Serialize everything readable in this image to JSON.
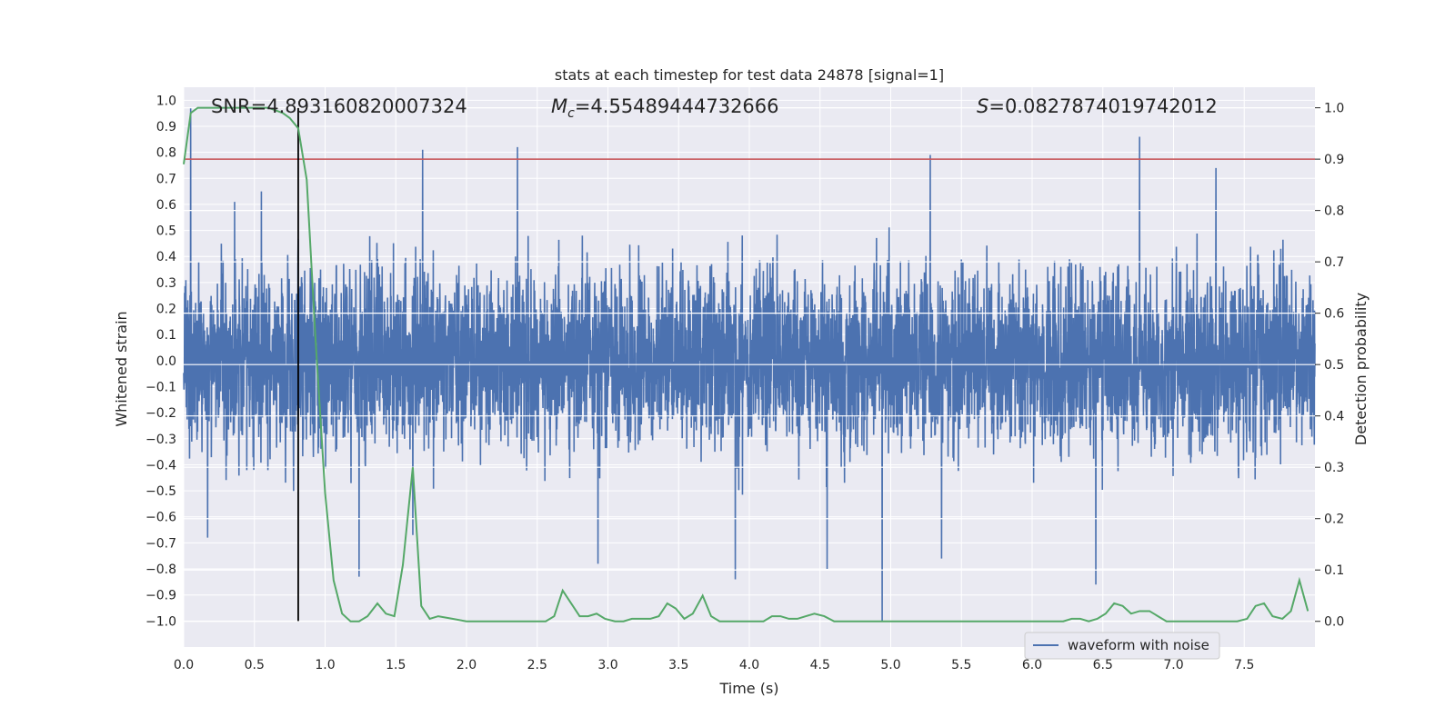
{
  "chart_data": {
    "type": "line",
    "title": "stats at each timestep for test data 24878 [signal=1]",
    "xlabel": "Time (s)",
    "ylabel": "Whitened strain",
    "y2label": "Detection probability",
    "xlim": [
      0.0,
      8.0
    ],
    "ylim": [
      -1.1,
      1.05
    ],
    "y2lim": [
      -0.05,
      1.04
    ],
    "x_ticks": [
      "0.0",
      "0.5",
      "1.0",
      "1.5",
      "2.0",
      "2.5",
      "3.0",
      "3.5",
      "4.0",
      "4.5",
      "5.0",
      "5.5",
      "6.0",
      "6.5",
      "7.0",
      "7.5"
    ],
    "y_ticks": [
      "1.0",
      "0.9",
      "0.8",
      "0.7",
      "0.6",
      "0.5",
      "0.4",
      "0.3",
      "0.2",
      "0.1",
      "0.0",
      "−0.1",
      "−0.2",
      "−0.3",
      "−0.4",
      "−0.5",
      "−0.6",
      "−0.7",
      "−0.8",
      "−0.9",
      "−1.0"
    ],
    "y2_ticks": [
      "1.0",
      "0.9",
      "0.8",
      "0.7",
      "0.6",
      "0.5",
      "0.4",
      "0.3",
      "0.2",
      "0.1",
      "0.0"
    ],
    "grid": true,
    "legend": {
      "entries": [
        "waveform with noise"
      ],
      "placement": "lower-right"
    },
    "annotations": {
      "snr": "SNR=4.893160820007324",
      "mc_symbol": "M",
      "mc_sub": "c",
      "mc_value": "=4.55489444732666",
      "s_symbol": "S",
      "s_value": "=0.0827874019742012"
    },
    "threshold_probability": 0.9,
    "marker_time": 0.81,
    "series": [
      {
        "name": "waveform with noise",
        "axis": "left",
        "color": "#4c72b0",
        "style": "dense noisy strain, typical envelope ±0.35, extreme spikes listed",
        "spikes": [
          {
            "x": 0.05,
            "y": 0.97
          },
          {
            "x": 0.17,
            "y": -0.68
          },
          {
            "x": 0.36,
            "y": 0.61
          },
          {
            "x": 0.55,
            "y": 0.65
          },
          {
            "x": 1.24,
            "y": -0.83
          },
          {
            "x": 1.62,
            "y": -0.67
          },
          {
            "x": 1.69,
            "y": 0.81
          },
          {
            "x": 2.36,
            "y": 0.82
          },
          {
            "x": 2.93,
            "y": -0.78
          },
          {
            "x": 3.9,
            "y": -0.84
          },
          {
            "x": 4.55,
            "y": -0.8
          },
          {
            "x": 4.94,
            "y": -1.0
          },
          {
            "x": 5.28,
            "y": 0.79
          },
          {
            "x": 5.36,
            "y": -0.76
          },
          {
            "x": 6.45,
            "y": -0.86
          },
          {
            "x": 6.76,
            "y": 0.86
          },
          {
            "x": 7.3,
            "y": 0.74
          }
        ]
      },
      {
        "name": "detection probability",
        "axis": "right",
        "color": "#55a868",
        "x": [
          0.0,
          0.05,
          0.1,
          0.2,
          0.3,
          0.4,
          0.5,
          0.6,
          0.7,
          0.75,
          0.81,
          0.87,
          0.93,
          1.0,
          1.06,
          1.12,
          1.18,
          1.24,
          1.3,
          1.37,
          1.43,
          1.49,
          1.55,
          1.62,
          1.68,
          1.74,
          1.8,
          1.9,
          2.0,
          2.2,
          2.4,
          2.56,
          2.62,
          2.68,
          2.74,
          2.8,
          2.86,
          2.92,
          2.98,
          3.05,
          3.11,
          3.17,
          3.3,
          3.36,
          3.42,
          3.48,
          3.54,
          3.6,
          3.67,
          3.73,
          3.79,
          3.85,
          3.97,
          4.1,
          4.16,
          4.22,
          4.28,
          4.34,
          4.4,
          4.46,
          4.53,
          4.6,
          4.7,
          5.0,
          5.3,
          5.6,
          6.0,
          6.22,
          6.28,
          6.34,
          6.4,
          6.46,
          6.52,
          6.58,
          6.64,
          6.7,
          6.76,
          6.83,
          6.89,
          6.95,
          7.1,
          7.3,
          7.45,
          7.52,
          7.58,
          7.64,
          7.7,
          7.77,
          7.83,
          7.89,
          7.95
        ],
        "values": [
          0.89,
          0.99,
          1.0,
          1.0,
          1.0,
          1.0,
          1.0,
          1.0,
          0.99,
          0.98,
          0.96,
          0.86,
          0.56,
          0.25,
          0.08,
          0.015,
          0.0,
          0.0,
          0.01,
          0.035,
          0.015,
          0.01,
          0.11,
          0.3,
          0.03,
          0.005,
          0.01,
          0.005,
          0.0,
          0.0,
          0.0,
          0.0,
          0.01,
          0.06,
          0.035,
          0.01,
          0.01,
          0.015,
          0.005,
          0.0,
          0.0,
          0.005,
          0.005,
          0.01,
          0.035,
          0.025,
          0.005,
          0.015,
          0.05,
          0.01,
          0.0,
          0.0,
          0.0,
          0.0,
          0.01,
          0.01,
          0.005,
          0.005,
          0.01,
          0.015,
          0.01,
          0.0,
          0.0,
          0.0,
          0.0,
          0.0,
          0.0,
          0.0,
          0.005,
          0.005,
          0.0,
          0.005,
          0.015,
          0.035,
          0.03,
          0.015,
          0.02,
          0.02,
          0.01,
          0.0,
          0.0,
          0.0,
          0.0,
          0.005,
          0.03,
          0.035,
          0.01,
          0.005,
          0.02,
          0.08,
          0.02
        ]
      }
    ]
  }
}
